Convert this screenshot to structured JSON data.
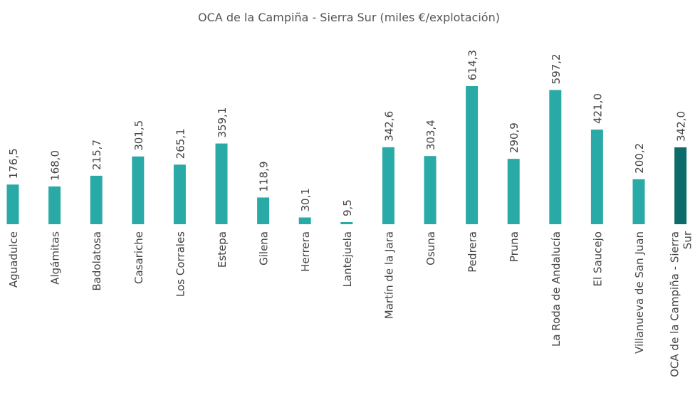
{
  "chart_data": {
    "type": "bar",
    "title": "OCA de la Campiña - Sierra Sur (miles €/explotación)",
    "categories": [
      "Aguadulce",
      "Algámitas",
      "Badolatosa",
      "Casariche",
      "Los Corrales",
      "Estepa",
      "Gilena",
      "Herrera",
      "Lantejuela",
      "Martín de la Jara",
      "Osuna",
      "Pedrera",
      "Pruna",
      "La Roda de Andalucía",
      "El Saucejo",
      "Villanueva de San Juan",
      "OCA de la Campiña - Sierra Sur"
    ],
    "values": [
      176.5,
      168.0,
      215.7,
      301.5,
      265.1,
      359.1,
      118.9,
      30.1,
      9.5,
      342.6,
      303.4,
      614.3,
      290.9,
      597.2,
      421.0,
      200.2,
      342.0
    ],
    "value_labels": [
      "176,5",
      "168,0",
      "215,7",
      "301,5",
      "265,1",
      "359,1",
      "118,9",
      "30,1",
      "9,5",
      "342,6",
      "303,4",
      "614,3",
      "290,9",
      "597,2",
      "421,0",
      "200,2",
      "342,0"
    ],
    "colors": [
      "#2aaaa6",
      "#2aaaa6",
      "#2aaaa6",
      "#2aaaa6",
      "#2aaaa6",
      "#2aaaa6",
      "#2aaaa6",
      "#2aaaa6",
      "#2aaaa6",
      "#2aaaa6",
      "#2aaaa6",
      "#2aaaa6",
      "#2aaaa6",
      "#2aaaa6",
      "#2aaaa6",
      "#2aaaa6",
      "#0d6b6a"
    ]
  }
}
